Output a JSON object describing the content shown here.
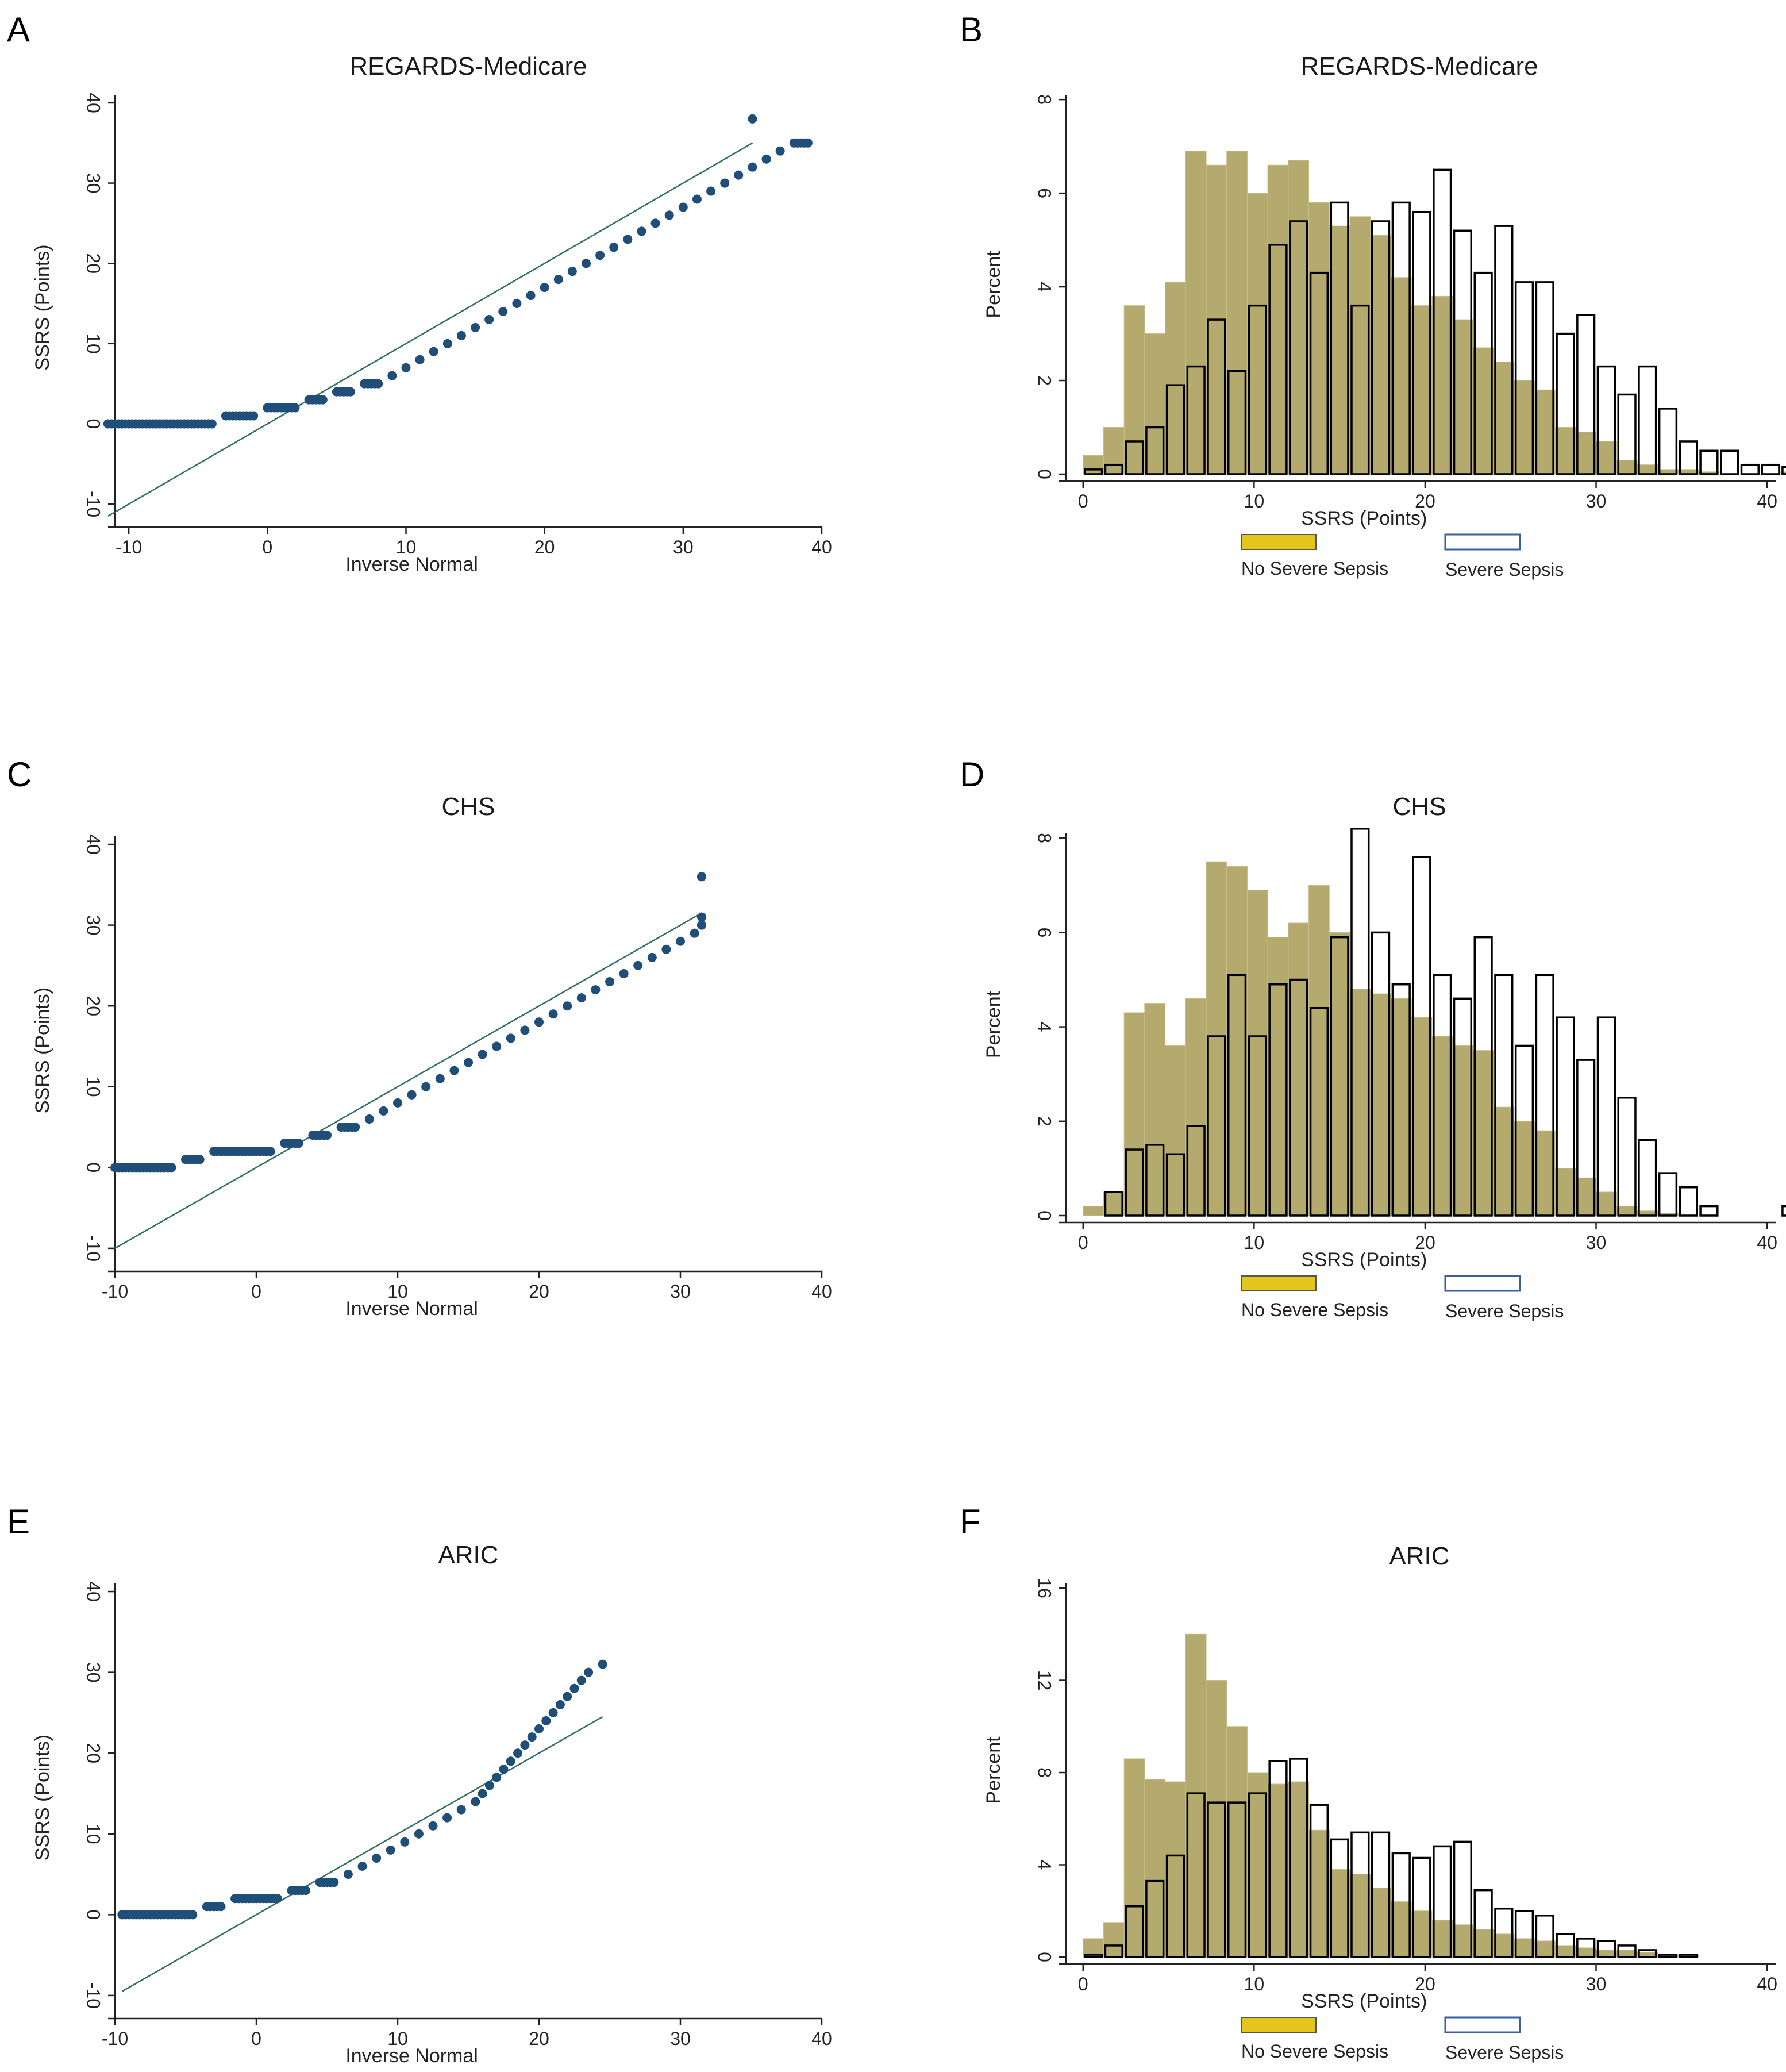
{
  "panels": [
    {
      "label": "A",
      "type": "scatter",
      "title": "REGARDS-Medicare",
      "xlabel": "Inverse Normal",
      "ylabel": "SSRS (Points)",
      "xlim": [
        -11,
        40
      ],
      "ylim": [
        -12,
        41
      ],
      "xticks": [
        -10,
        0,
        10,
        20,
        30,
        40
      ],
      "yticks": [
        -10,
        0,
        10,
        20,
        30,
        40
      ],
      "ref_line": [
        [
          -11.5,
          -11.5
        ],
        [
          35,
          35
        ]
      ],
      "points": [
        [
          -11.5,
          0
        ],
        [
          -10,
          0
        ],
        [
          -9.5,
          0
        ],
        [
          -8.5,
          0
        ],
        [
          -8,
          0
        ],
        [
          -7.5,
          0
        ],
        [
          -7,
          0
        ],
        [
          -6.5,
          0
        ],
        [
          -6,
          0
        ],
        [
          -5.5,
          0
        ],
        [
          -5,
          0
        ],
        [
          -4.5,
          0
        ],
        [
          -4,
          0
        ],
        [
          -3,
          1
        ],
        [
          -2,
          1
        ],
        [
          -1,
          1
        ],
        [
          0,
          2
        ],
        [
          1,
          2
        ],
        [
          2,
          2
        ],
        [
          3,
          3
        ],
        [
          4,
          3
        ],
        [
          5,
          4
        ],
        [
          6,
          4
        ],
        [
          7,
          5
        ],
        [
          8,
          5
        ],
        [
          9,
          6
        ],
        [
          10,
          7
        ],
        [
          11,
          8
        ],
        [
          12,
          9
        ],
        [
          13,
          10
        ],
        [
          14,
          11
        ],
        [
          15,
          12
        ],
        [
          16,
          13
        ],
        [
          17,
          14
        ],
        [
          18,
          15
        ],
        [
          19,
          16
        ],
        [
          20,
          17
        ],
        [
          21,
          18
        ],
        [
          22,
          19
        ],
        [
          23,
          20
        ],
        [
          24,
          21
        ],
        [
          25,
          22
        ],
        [
          26,
          23
        ],
        [
          27,
          24
        ],
        [
          28,
          25
        ],
        [
          29,
          26
        ],
        [
          30,
          27
        ],
        [
          31,
          28
        ],
        [
          32,
          29
        ],
        [
          33,
          30
        ],
        [
          34,
          31
        ],
        [
          35,
          32
        ],
        [
          36,
          33
        ],
        [
          37,
          34
        ],
        [
          38,
          35
        ],
        [
          39,
          35
        ],
        [
          35,
          38
        ]
      ]
    },
    {
      "label": "B",
      "type": "histogram",
      "title": "REGARDS-Medicare",
      "xlabel": "SSRS (Points)",
      "ylabel": "Percent",
      "xlim": [
        -1,
        40.5
      ],
      "ylim": [
        0,
        8.1
      ],
      "xticks": [
        0,
        10,
        20,
        30,
        40
      ],
      "yticks": [
        0,
        2,
        4,
        6,
        8
      ],
      "bin_start": 0,
      "bin_width": 1.2,
      "series": [
        {
          "name": "No Severe Sepsis",
          "color": "#b5aa6e",
          "values": [
            0.4,
            1.0,
            3.6,
            3.0,
            4.1,
            6.9,
            6.6,
            6.9,
            6.0,
            6.6,
            6.7,
            5.8,
            5.3,
            5.5,
            5.1,
            4.2,
            3.6,
            3.8,
            3.3,
            2.7,
            2.4,
            2.0,
            1.8,
            1.0,
            0.9,
            0.7,
            0.3,
            0.2,
            0.1,
            0.1,
            0.05,
            0.0,
            0.0,
            0.0,
            0.05
          ]
        },
        {
          "name": "Severe Sepsis",
          "color": "#ffffff",
          "values": [
            0.1,
            0.2,
            0.7,
            1.0,
            1.9,
            2.3,
            3.3,
            2.2,
            3.6,
            4.9,
            5.4,
            4.3,
            5.8,
            3.6,
            5.4,
            5.8,
            5.6,
            6.5,
            5.2,
            4.3,
            5.3,
            4.1,
            4.1,
            3.0,
            3.4,
            2.3,
            1.7,
            2.3,
            1.4,
            0.7,
            0.5,
            0.5,
            0.2,
            0.2,
            0.15
          ]
        }
      ],
      "legend": [
        "No Severe Sepsis",
        "Severe Sepsis"
      ]
    },
    {
      "label": "C",
      "type": "scatter",
      "title": "CHS",
      "xlabel": "Inverse Normal",
      "ylabel": "SSRS (Points)",
      "xlim": [
        -10,
        40
      ],
      "ylim": [
        -12,
        41
      ],
      "xticks": [
        -10,
        0,
        10,
        20,
        30,
        40
      ],
      "yticks": [
        -10,
        0,
        10,
        20,
        30,
        40
      ],
      "ref_line": [
        [
          -10,
          -10
        ],
        [
          31.5,
          31.5
        ]
      ],
      "points": [
        [
          -10,
          0
        ],
        [
          -9,
          0
        ],
        [
          -8,
          0
        ],
        [
          -7,
          0
        ],
        [
          -6,
          0
        ],
        [
          -5,
          1
        ],
        [
          -4,
          1
        ],
        [
          -3,
          2
        ],
        [
          -2,
          2
        ],
        [
          -1,
          2
        ],
        [
          0,
          2
        ],
        [
          1,
          2
        ],
        [
          2,
          3
        ],
        [
          3,
          3
        ],
        [
          4,
          4
        ],
        [
          5,
          4
        ],
        [
          6,
          5
        ],
        [
          7,
          5
        ],
        [
          8,
          6
        ],
        [
          9,
          7
        ],
        [
          10,
          8
        ],
        [
          11,
          9
        ],
        [
          12,
          10
        ],
        [
          13,
          11
        ],
        [
          14,
          12
        ],
        [
          15,
          13
        ],
        [
          16,
          14
        ],
        [
          17,
          15
        ],
        [
          18,
          16
        ],
        [
          19,
          17
        ],
        [
          20,
          18
        ],
        [
          21,
          19
        ],
        [
          22,
          20
        ],
        [
          23,
          21
        ],
        [
          24,
          22
        ],
        [
          25,
          23
        ],
        [
          26,
          24
        ],
        [
          27,
          25
        ],
        [
          28,
          26
        ],
        [
          29,
          27
        ],
        [
          30,
          28
        ],
        [
          31,
          29
        ],
        [
          31.5,
          30
        ],
        [
          31.5,
          31
        ],
        [
          31.5,
          36
        ]
      ]
    },
    {
      "label": "D",
      "type": "histogram",
      "title": "CHS",
      "xlabel": "SSRS (Points)",
      "ylabel": "Percent",
      "xlim": [
        -1,
        40.5
      ],
      "ylim": [
        0,
        8.1
      ],
      "xticks": [
        0,
        10,
        20,
        30,
        40
      ],
      "yticks": [
        0,
        2,
        4,
        6,
        8
      ],
      "bin_start": 0,
      "bin_width": 1.2,
      "series": [
        {
          "name": "No Severe Sepsis",
          "color": "#b5aa6e",
          "values": [
            0.2,
            0.5,
            4.3,
            4.5,
            3.6,
            4.6,
            7.5,
            7.4,
            6.9,
            5.9,
            6.2,
            7.0,
            6.0,
            4.8,
            4.7,
            4.6,
            4.2,
            3.8,
            3.6,
            3.5,
            2.3,
            2.0,
            1.8,
            1.0,
            0.8,
            0.5,
            0.2,
            0.1,
            0.05,
            0.0
          ]
        },
        {
          "name": "Severe Sepsis",
          "color": "#ffffff",
          "values": [
            0.0,
            0.5,
            1.4,
            1.5,
            1.3,
            1.9,
            3.8,
            5.1,
            3.8,
            4.9,
            5.0,
            4.4,
            5.9,
            8.2,
            6.0,
            4.9,
            7.6,
            5.1,
            4.6,
            5.9,
            5.1,
            3.6,
            5.1,
            4.2,
            3.3,
            4.2,
            2.5,
            1.6,
            0.9,
            0.6,
            0.2,
            0.0,
            0.0,
            0.0,
            0.2
          ]
        }
      ],
      "legend": [
        "No Severe Sepsis",
        "Severe Sepsis"
      ]
    },
    {
      "label": "E",
      "type": "scatter",
      "title": "ARIC",
      "xlabel": "Inverse Normal",
      "ylabel": "SSRS (Points)",
      "xlim": [
        -10,
        40
      ],
      "ylim": [
        -12,
        41
      ],
      "xticks": [
        -10,
        0,
        10,
        20,
        30,
        40
      ],
      "yticks": [
        -10,
        0,
        10,
        20,
        30,
        40
      ],
      "ref_line": [
        [
          -9.5,
          -9.5
        ],
        [
          24.5,
          24.5
        ]
      ],
      "points": [
        [
          -9.5,
          0
        ],
        [
          -8.5,
          0
        ],
        [
          -7.5,
          0
        ],
        [
          -6.5,
          0
        ],
        [
          -5.5,
          0
        ],
        [
          -4.5,
          0
        ],
        [
          -3.5,
          1
        ],
        [
          -2.5,
          1
        ],
        [
          -1.5,
          2
        ],
        [
          -0.5,
          2
        ],
        [
          0.5,
          2
        ],
        [
          1.5,
          2
        ],
        [
          2.5,
          3
        ],
        [
          3.5,
          3
        ],
        [
          4.5,
          4
        ],
        [
          5.5,
          4
        ],
        [
          6.5,
          5
        ],
        [
          7.5,
          6
        ],
        [
          8.5,
          7
        ],
        [
          9.5,
          8
        ],
        [
          10.5,
          9
        ],
        [
          11.5,
          10
        ],
        [
          12.5,
          11
        ],
        [
          13.5,
          12
        ],
        [
          14.5,
          13
        ],
        [
          15.5,
          14
        ],
        [
          16,
          15
        ],
        [
          16.5,
          16
        ],
        [
          17,
          17
        ],
        [
          17.5,
          18
        ],
        [
          18,
          19
        ],
        [
          18.5,
          20
        ],
        [
          19,
          21
        ],
        [
          19.5,
          22
        ],
        [
          20,
          23
        ],
        [
          20.5,
          24
        ],
        [
          21,
          25
        ],
        [
          21.5,
          26
        ],
        [
          22,
          27
        ],
        [
          22.5,
          28
        ],
        [
          23,
          29
        ],
        [
          23.5,
          30
        ],
        [
          24.5,
          31
        ]
      ]
    },
    {
      "label": "F",
      "type": "histogram",
      "title": "ARIC",
      "xlabel": "SSRS (Points)",
      "ylabel": "Percent",
      "xlim": [
        -1,
        40.5
      ],
      "ylim": [
        0,
        16.2
      ],
      "xticks": [
        0,
        10,
        20,
        30,
        40
      ],
      "yticks": [
        0,
        4,
        8,
        12,
        16
      ],
      "bin_start": 0,
      "bin_width": 1.2,
      "series": [
        {
          "name": "No Severe Sepsis",
          "color": "#b5aa6e",
          "values": [
            0.8,
            1.5,
            8.6,
            7.7,
            7.6,
            14.0,
            12.0,
            10.0,
            8.0,
            7.5,
            7.6,
            5.5,
            3.8,
            3.6,
            3.0,
            2.4,
            2.0,
            1.6,
            1.4,
            1.2,
            1.0,
            0.8,
            0.7,
            0.5,
            0.4,
            0.3,
            0.3,
            0.2,
            0.1,
            0.1
          ]
        },
        {
          "name": "Severe Sepsis",
          "color": "#ffffff",
          "values": [
            0.1,
            0.5,
            2.2,
            3.3,
            4.4,
            7.1,
            6.7,
            6.7,
            7.1,
            8.5,
            8.6,
            6.6,
            5.1,
            5.4,
            5.4,
            4.5,
            4.3,
            4.8,
            5.0,
            2.9,
            2.1,
            2.0,
            1.8,
            1.0,
            0.8,
            0.7,
            0.5,
            0.3,
            0.1,
            0.1
          ]
        }
      ],
      "legend": [
        "No Severe Sepsis",
        "Severe Sepsis"
      ]
    }
  ],
  "colors": {
    "scatter": "#1f4e79",
    "refline": "#2f6f63",
    "no_sepsis": "#b5aa6e",
    "legend_no_sepsis": "#e3c51b",
    "severe_sepsis": "#ffffff",
    "legend_severe": "#3a5fa0",
    "axis": "#222222"
  }
}
